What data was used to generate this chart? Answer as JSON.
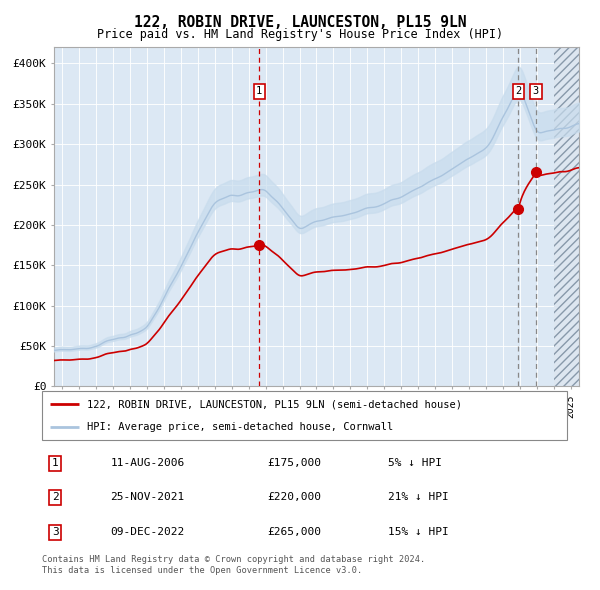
{
  "title": "122, ROBIN DRIVE, LAUNCESTON, PL15 9LN",
  "subtitle": "Price paid vs. HM Land Registry's House Price Index (HPI)",
  "legend_line1": "122, ROBIN DRIVE, LAUNCESTON, PL15 9LN (semi-detached house)",
  "legend_line2": "HPI: Average price, semi-detached house, Cornwall",
  "footnote1": "Contains HM Land Registry data © Crown copyright and database right 2024.",
  "footnote2": "This data is licensed under the Open Government Licence v3.0.",
  "hpi_color": "#aac4de",
  "hpi_fill_color": "#c8dced",
  "price_color": "#cc0000",
  "bg_color": "#dce8f4",
  "ylim": [
    0,
    420000
  ],
  "yticks": [
    0,
    50000,
    100000,
    150000,
    200000,
    250000,
    300000,
    350000,
    400000
  ],
  "ytick_labels": [
    "£0",
    "£50K",
    "£100K",
    "£150K",
    "£200K",
    "£250K",
    "£300K",
    "£350K",
    "£400K"
  ],
  "sale1_date": 2006.62,
  "sale1_price": 175000,
  "sale1_label": "1",
  "sale1_display": "11-AUG-2006",
  "sale1_amount": "£175,000",
  "sale1_hpi": "5% ↓ HPI",
  "sale2_date": 2021.92,
  "sale2_price": 220000,
  "sale2_label": "2",
  "sale2_display": "25-NOV-2021",
  "sale2_amount": "£220,000",
  "sale2_hpi": "21% ↓ HPI",
  "sale3_date": 2022.95,
  "sale3_price": 265000,
  "sale3_label": "3",
  "sale3_display": "09-DEC-2022",
  "sale3_amount": "£265,000",
  "sale3_hpi": "15% ↓ HPI",
  "xmin": 1994.5,
  "xmax": 2025.5,
  "future_start": 2024.0
}
